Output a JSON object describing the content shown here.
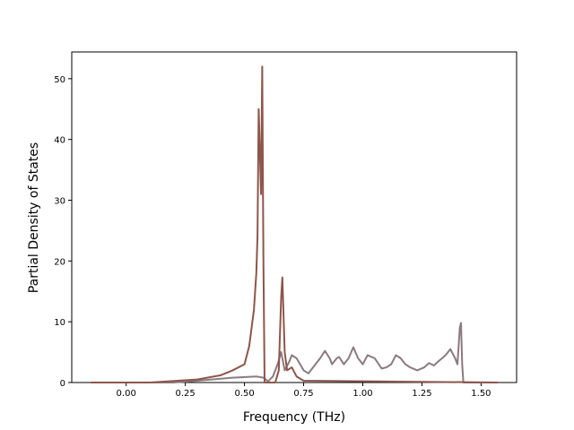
{
  "chart_data": {
    "type": "line",
    "x_label": "Frequency (THz)",
    "y_label": "Partial Density of States",
    "xlim": [
      -0.23,
      1.65
    ],
    "ylim": [
      0,
      54.4
    ],
    "xticks": [
      {
        "value": 0,
        "label": "0.00"
      },
      {
        "value": 0.25,
        "label": "0.25"
      },
      {
        "value": 0.5,
        "label": "0.50"
      },
      {
        "value": 0.75,
        "label": "0.75"
      },
      {
        "value": 1,
        "label": "1.00"
      },
      {
        "value": 1.25,
        "label": "1.25"
      },
      {
        "value": 1.5,
        "label": "1.50"
      }
    ],
    "yticks": [
      0,
      10,
      20,
      30,
      40,
      50
    ],
    "series": [
      {
        "color": "#8c7a80",
        "x": [
          -0.15,
          0.2,
          0.3,
          0.45,
          0.55,
          0.58,
          0.6,
          0.62,
          0.64,
          0.655,
          0.67,
          0.69,
          0.7,
          0.72,
          0.75,
          0.77,
          0.8,
          0.82,
          0.84,
          0.86,
          0.87,
          0.89,
          0.9,
          0.92,
          0.94,
          0.96,
          0.98,
          1.0,
          1.02,
          1.05,
          1.08,
          1.1,
          1.12,
          1.14,
          1.16,
          1.18,
          1.2,
          1.23,
          1.26,
          1.28,
          1.3,
          1.32,
          1.35,
          1.37,
          1.39,
          1.4,
          1.41,
          1.415,
          1.42,
          1.425,
          1.57
        ],
        "values": [
          0,
          0,
          0.3,
          0.8,
          1,
          0.8,
          0.2,
          1,
          3,
          5,
          2,
          3.5,
          4.5,
          4,
          2,
          1.5,
          3,
          4,
          5.2,
          4,
          3,
          4,
          4.2,
          3,
          4,
          5.8,
          4,
          3,
          4.5,
          4,
          2.3,
          2.5,
          3,
          4.5,
          4,
          3,
          2.5,
          2,
          2.5,
          3.2,
          2.8,
          3.5,
          4.5,
          5.5,
          4,
          3,
          9,
          9.8,
          3,
          0,
          0
        ]
      },
      {
        "color": "#8c564b",
        "x": [
          -0.15,
          0.1,
          0.3,
          0.4,
          0.45,
          0.5,
          0.52,
          0.54,
          0.55,
          0.555,
          0.56,
          0.565,
          0.57,
          0.575,
          0.58,
          0.585,
          0.63,
          0.645,
          0.655,
          0.66,
          0.67,
          0.68,
          0.7,
          0.72,
          0.75,
          1.57
        ],
        "values": [
          0,
          0,
          0.5,
          1.2,
          2,
          3,
          6,
          12,
          18,
          24,
          45,
          38,
          31,
          52,
          20,
          0,
          0,
          2,
          14,
          17.3,
          5,
          2,
          2.5,
          1,
          0.3,
          0
        ]
      }
    ]
  }
}
